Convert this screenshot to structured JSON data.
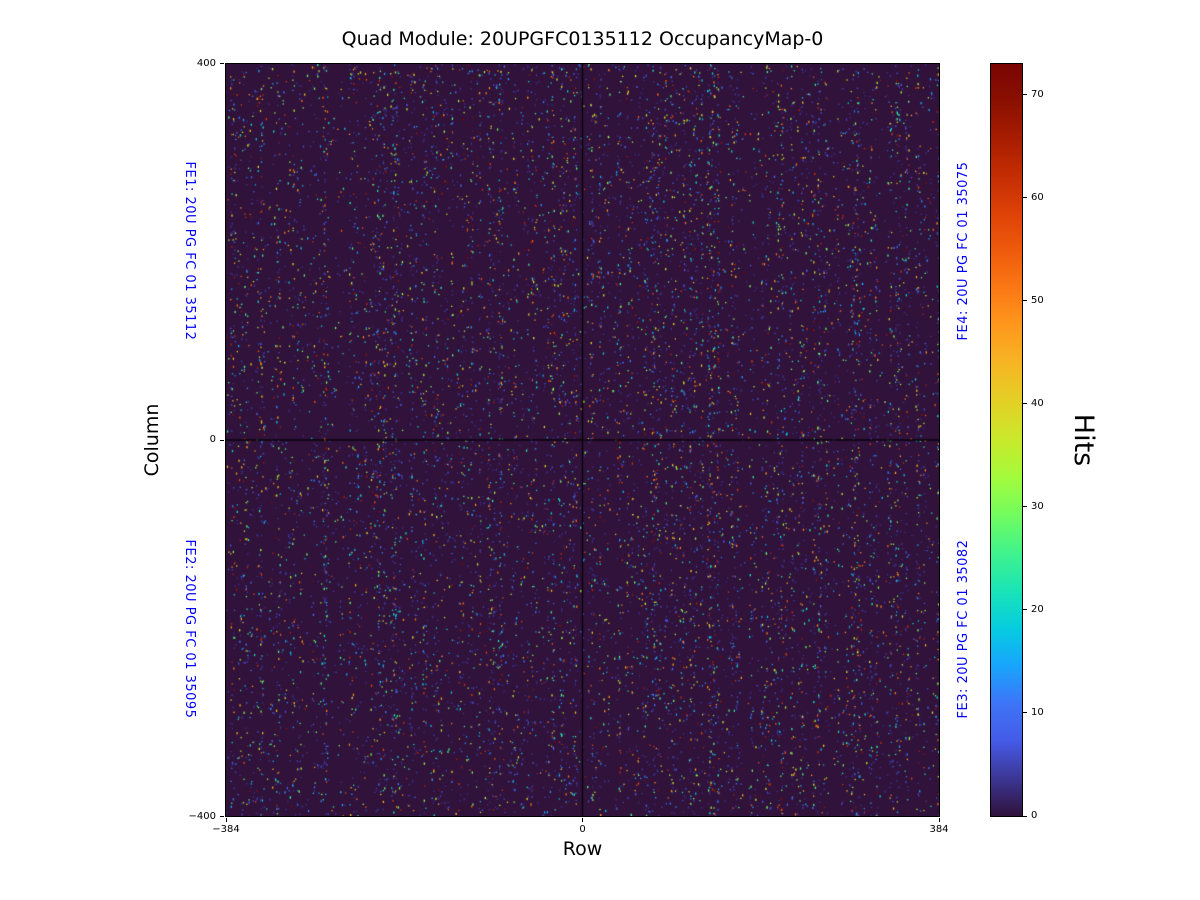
{
  "annotation_color": "#0000ff",
  "axes": {
    "xticks": [
      {
        "value": -384,
        "label": "−384"
      },
      {
        "value": 0,
        "label": "0"
      },
      {
        "value": 384,
        "label": "384"
      }
    ],
    "yticks": [
      {
        "value": 400,
        "label": "400"
      },
      {
        "value": 0,
        "label": "0"
      },
      {
        "value": -400,
        "label": "−400"
      }
    ]
  },
  "colorbar": {
    "label": "Hits",
    "vmax": 73,
    "ticks": [
      {
        "value": 0,
        "label": "0"
      },
      {
        "value": 10,
        "label": "10"
      },
      {
        "value": 20,
        "label": "20"
      },
      {
        "value": 30,
        "label": "30"
      },
      {
        "value": 40,
        "label": "40"
      },
      {
        "value": 50,
        "label": "50"
      },
      {
        "value": 60,
        "label": "60"
      },
      {
        "value": 70,
        "label": "70"
      }
    ],
    "stops": [
      "#30123b",
      "#3c3694",
      "#455be7",
      "#3e75f8",
      "#18a5fd",
      "#06cddf",
      "#1ae4b6",
      "#40f38c",
      "#72fc5f",
      "#a3fb3c",
      "#c9e92b",
      "#e3d126",
      "#f6b624",
      "#fe991d",
      "#fb7914",
      "#ef5b0c",
      "#de4207",
      "#c52d03",
      "#a81d01",
      "#8a1001",
      "#7a0402"
    ]
  },
  "chart_data": {
    "type": "heatmap",
    "title": "Quad Module: 20UPGFC0135112 OccupancyMap-0",
    "xlabel": "Row",
    "ylabel": "Column",
    "xlim": [
      -384,
      384
    ],
    "ylim": [
      -400,
      400
    ],
    "colorbar_label": "Hits",
    "value_range": [
      0,
      73
    ],
    "colormap": "turbo",
    "background_value": 0,
    "grid": false,
    "pattern": "sparse random single-pixel hits (~2% occupancy, values mostly 1-15 hits with occasional hits up to ~73) on a dark zero-hit background; vertical streak structure; black cross lines at Row 0 and Column 0 separating the four front-end chip quadrants",
    "quadrants": [
      {
        "position": "top-left",
        "label": "FE1: 20U PG FC 01 35112"
      },
      {
        "position": "bottom-left",
        "label": "FE2: 20U PG FC 01 35095"
      },
      {
        "position": "top-right",
        "label": "FE4: 20U PG FC 01 35075"
      },
      {
        "position": "bottom-right",
        "label": "FE3: 20U PG FC 01 35082"
      }
    ],
    "noise": {
      "seed": 1337,
      "points": 12500,
      "columns": 356,
      "value_skew": 2.6
    }
  }
}
